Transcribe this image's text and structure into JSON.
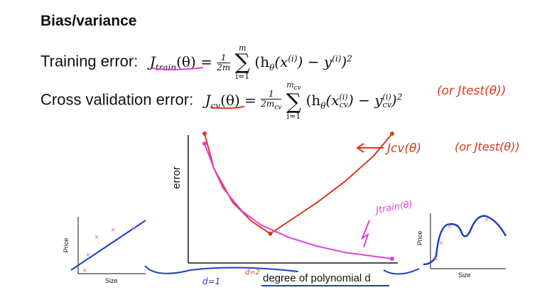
{
  "title": "Bias/variance",
  "formulas": {
    "train": {
      "label": "Training error:",
      "lhs": "J",
      "lhs_sub": "train",
      "lhs_arg": "(θ) =",
      "frac_num": "1",
      "frac_den": "2m",
      "sum_top": "m",
      "sum_bottom": "i=1",
      "body": "(h",
      "body_sub": "θ",
      "body_rest": "(x",
      "sup_i": "(i)",
      "body_close": ") − y",
      "sup_i2": "(i)",
      "tail": ")",
      "sq": "2"
    },
    "cv": {
      "label": "Cross validation error:",
      "lhs": "J",
      "lhs_sub": "cv",
      "lhs_arg": "(θ) =",
      "frac_num": "1",
      "frac_den": "2m",
      "frac_den_sub": "cv",
      "sum_top": "m",
      "sum_top_sub": "cv",
      "sum_bottom": "i=1",
      "body": "(h",
      "body_sub": "θ",
      "body_rest": "(x",
      "x_sup": "(i)",
      "x_sub": "cv",
      "body_close": ") − y",
      "y_sup": "(i)",
      "y_sub": "cv",
      "tail": ")",
      "sq": "2"
    }
  },
  "annotations": {
    "or_jtest_top": "(or Jtest(θ))",
    "jcv_label": "Jcv(θ)",
    "or_jtest_right": "(or Jtest(θ))",
    "jtrain_label": "Jtrain(θ)",
    "d1": "d=1",
    "d2": "d=2"
  },
  "chart_data": {
    "type": "line",
    "title": "",
    "xlabel": "degree of polynomial d",
    "ylabel": "error",
    "series": [
      {
        "name": "Jcv(θ)",
        "color": "#d93a1f",
        "x": [
          0,
          0.05,
          0.15,
          0.25,
          0.35,
          0.45,
          0.6,
          0.75,
          0.9,
          1.0
        ],
        "y": [
          1.0,
          0.72,
          0.45,
          0.3,
          0.2,
          0.3,
          0.45,
          0.62,
          0.82,
          1.0
        ]
      },
      {
        "name": "Jtrain(θ)",
        "color": "#e040e0",
        "x": [
          0,
          0.05,
          0.1,
          0.2,
          0.3,
          0.45,
          0.6,
          0.75,
          0.9,
          1.0
        ],
        "y": [
          0.92,
          0.72,
          0.56,
          0.38,
          0.27,
          0.17,
          0.1,
          0.05,
          0.02,
          0.0
        ]
      }
    ],
    "grid": false,
    "legend": "none"
  },
  "small_plots": {
    "left": {
      "xlabel": "Size",
      "ylabel": "Price"
    },
    "right": {
      "xlabel": "Size",
      "ylabel": "Price"
    }
  },
  "colors": {
    "cv": "#d93a1f",
    "train": "#e040e0",
    "ink_blue": "#1f3fbf",
    "marker": "#e06a8a"
  }
}
